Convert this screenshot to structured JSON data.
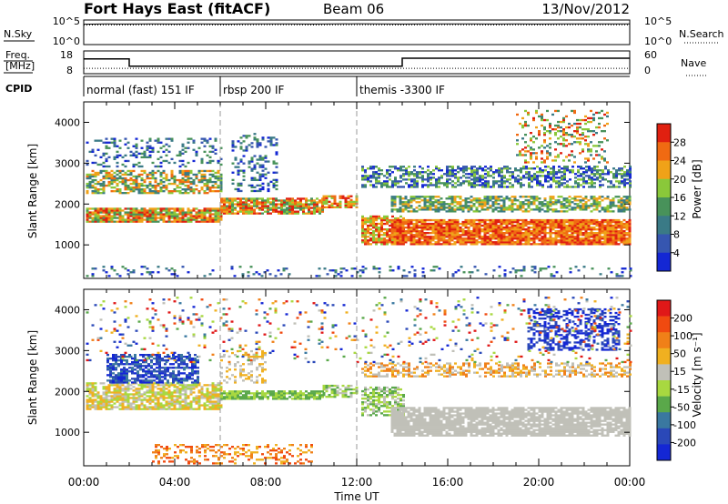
{
  "header": {
    "station": "Fort Hays East (fitACF)",
    "beam": "Beam 06",
    "date": "13/Nov/2012"
  },
  "chart_data": [
    {
      "type": "line",
      "panel": "noise",
      "left_label": "N.Sky",
      "right_label": "N.Search",
      "left_ticks": [
        "10^5",
        "10^0"
      ],
      "right_ticks": [
        "10^5",
        "10^0"
      ],
      "series": [
        {
          "name": "N.Sky",
          "style": "solid",
          "values": [
            14000,
            16000,
            15000,
            17000,
            15500,
            16500,
            15000,
            16000,
            17000,
            16000,
            15000,
            16000,
            17500,
            16000,
            15500,
            16500,
            17000,
            16000,
            15000,
            16000,
            15500,
            16000,
            17000,
            16500,
            16000
          ]
        },
        {
          "name": "N.Search",
          "style": "dotted",
          "values": [
            9000,
            10000,
            9500,
            11000,
            10000,
            10500,
            9500,
            10000,
            11000,
            10500,
            9500,
            10000,
            11000,
            10000,
            9500,
            10500,
            11000,
            10000,
            9500,
            10000,
            9500,
            10000,
            11000,
            10500,
            10000
          ]
        }
      ]
    },
    {
      "type": "line",
      "panel": "frequency",
      "left_label": "Freq.",
      "left_unit": "[MHz]",
      "right_label": "Nave",
      "left_ticks": [
        "18",
        "8"
      ],
      "right_ticks": [
        "60",
        "0"
      ],
      "freq_steps": [
        [
          0,
          2,
          14.5
        ],
        [
          2,
          14,
          11.3
        ],
        [
          14,
          24,
          14.8
        ]
      ],
      "nave_level": 14
    },
    {
      "type": "table",
      "panel": "cpid",
      "label": "CPID",
      "segments": [
        {
          "start": 0,
          "end": 6,
          "text": "normal (fast) 151 IF"
        },
        {
          "start": 6,
          "end": 12,
          "text": "rbsp 200 IF"
        },
        {
          "start": 12,
          "end": 24,
          "text": "themis -3300 IF"
        }
      ]
    },
    {
      "type": "heatmap",
      "panel": "power",
      "ylabel": "Slant Range [km]",
      "yticks": [
        1000,
        2000,
        3000,
        4000
      ],
      "ylim": [
        180,
        4500
      ],
      "colorbar_label": "Power [dB]",
      "colorbar_ticks": [
        "28",
        "24",
        "20",
        "16",
        "12",
        "8",
        "4"
      ],
      "colors": [
        "#1427d4",
        "#3656b0",
        "#3a7a86",
        "#48925a",
        "#8ac83a",
        "#f0a218",
        "#f06a12",
        "#e02010"
      ]
    },
    {
      "type": "heatmap",
      "panel": "velocity",
      "ylabel": "Slant Range [km]",
      "yticks": [
        1000,
        2000,
        3000,
        4000
      ],
      "ylim": [
        180,
        4500
      ],
      "colorbar_label": "Velocity [m s⁻¹]",
      "colorbar_ticks": [
        "200",
        "100",
        "50",
        "15",
        "-15",
        "-50",
        "-100",
        "-200"
      ],
      "colors": [
        "#1427d4",
        "#2a48b8",
        "#3a78a0",
        "#5aa84a",
        "#a8d840",
        "#c0c0b8",
        "#f0b020",
        "#f08018",
        "#f04a10",
        "#e01818"
      ]
    }
  ],
  "time_axis": {
    "label": "Time UT",
    "ticks": [
      "00:00",
      "04:00",
      "08:00",
      "12:00",
      "16:00",
      "20:00",
      "00:00"
    ],
    "range_hours": [
      0,
      24
    ]
  }
}
